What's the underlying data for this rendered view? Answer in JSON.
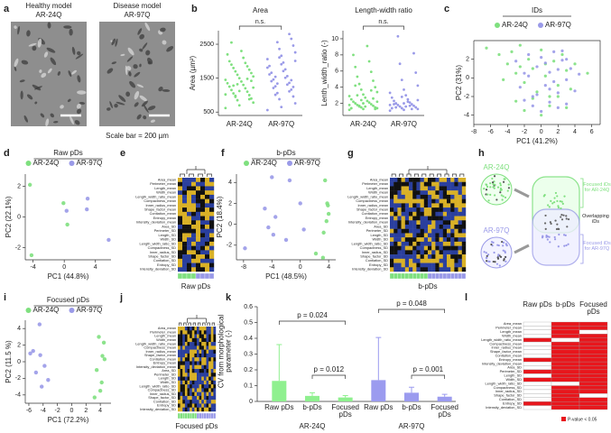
{
  "panel_labels": [
    "a",
    "b",
    "c",
    "d",
    "e",
    "f",
    "g",
    "h",
    "i",
    "j",
    "k",
    "l"
  ],
  "panel_a": {
    "left": [
      "Healthy model",
      "AR-24Q"
    ],
    "right": [
      "Disease model",
      "AR-97Q"
    ],
    "scale_note": "Scale bar = 200 µm"
  },
  "chart_data": [
    {
      "type": "swarm",
      "title": "Area",
      "ylabel": "Area (µm²)",
      "annotation": "n.s.",
      "categories": [
        "AR-24Q",
        "AR-97Q"
      ],
      "colors": [
        "#7fe07f",
        "#9a9ae8"
      ],
      "values": [
        [
          620,
          700,
          780,
          850,
          900,
          950,
          1000,
          1050,
          1100,
          1150,
          1200,
          1250,
          1300,
          1350,
          1400,
          1450,
          1500,
          1550,
          1600,
          1650,
          1700,
          1750,
          1800,
          1850,
          1900,
          1950,
          2000,
          2100,
          2200,
          2300,
          1020,
          1120,
          1220,
          1320,
          1420,
          980,
          880,
          1280,
          1480,
          2550
        ],
        [
          560,
          650,
          760,
          880,
          960,
          1060,
          1160,
          1260,
          1360,
          1460,
          1560,
          1660,
          1760,
          1860,
          1960,
          2060,
          2160,
          2260,
          2360,
          2460,
          2560,
          2660,
          1010,
          1110,
          1210,
          1310,
          1410,
          1510,
          1610,
          1710,
          1810,
          1910,
          2010,
          2110,
          1240,
          1340,
          1440,
          1540,
          2800
        ]
      ],
      "ylim": [
        400,
        2900
      ],
      "yticks": [
        500,
        1500,
        2500
      ]
    },
    {
      "type": "swarm",
      "title": "Length-width ratio",
      "ylabel": "Lenth_width_ratio (-)",
      "annotation": "n.s.",
      "categories": [
        "AR-24Q",
        "AR-97Q"
      ],
      "colors": [
        "#7fe07f",
        "#9a9ae8"
      ],
      "values": [
        [
          1.2,
          1.3,
          1.4,
          1.5,
          1.5,
          1.6,
          1.7,
          1.8,
          1.9,
          2.0,
          2.1,
          2.2,
          2.3,
          2.5,
          2.7,
          2.9,
          3.1,
          3.4,
          3.7,
          4.0,
          4.4,
          4.8,
          5.3,
          5.9,
          6.5,
          7.2,
          8.0,
          9.1,
          1.4,
          1.6,
          1.8,
          2.0,
          2.2,
          2.4,
          1.3,
          1.7,
          2.6,
          3.0,
          3.6,
          4.2
        ],
        [
          1.1,
          1.2,
          1.3,
          1.4,
          1.5,
          1.6,
          1.7,
          1.8,
          1.9,
          2.0,
          2.1,
          2.3,
          2.5,
          2.7,
          3.0,
          3.3,
          3.7,
          4.2,
          4.9,
          5.8,
          6.9,
          8.2,
          10.3,
          1.3,
          1.5,
          1.7,
          1.9,
          2.2,
          1.4,
          1.6,
          1.8,
          2.0,
          2.4,
          2.8
        ]
      ],
      "ylim": [
        0.5,
        11
      ],
      "yticks": [
        2,
        4,
        6,
        8,
        10
      ]
    },
    {
      "type": "scatter",
      "title": "IDs",
      "xlabel": "PC1 (41.2%)",
      "ylabel": "PC2 (31%)",
      "xlim": [
        -8,
        7
      ],
      "ylim": [
        -5,
        4
      ],
      "xticks": [
        -8,
        -6,
        -4,
        -2,
        0,
        2,
        4,
        6
      ],
      "yticks": [
        -4,
        -2,
        0,
        2
      ],
      "series": [
        {
          "name": "AR-24Q",
          "color": "#7fe07f",
          "x": [
            -6.5,
            -5,
            -4,
            -3.5,
            -3,
            -2.5,
            -2,
            -1.5,
            -1,
            -0.5,
            0,
            0.5,
            1,
            1.5,
            2,
            2.5,
            3,
            3.5,
            4,
            -3,
            -2,
            -1,
            0,
            1,
            2,
            -4.5,
            -2.5,
            0.5,
            3,
            5.5
          ],
          "y": [
            3.2,
            2.5,
            1.5,
            2.8,
            0.5,
            3.5,
            -0.5,
            2,
            1,
            -1.5,
            3,
            0.2,
            -2,
            1.8,
            -0.8,
            2.5,
            0.8,
            -1.2,
            1.5,
            -2.5,
            -3.5,
            -2.2,
            -4,
            -3,
            -2,
            -0.2,
            1.2,
            1.5,
            -3.2,
            0.5
          ]
        },
        {
          "name": "AR-97Q",
          "color": "#9a9ae8",
          "x": [
            -3,
            -2.5,
            -2,
            -1.5,
            -1,
            -0.5,
            0,
            0.5,
            1,
            1.5,
            2,
            2.5,
            3,
            3.5,
            4,
            4.5,
            -1,
            0,
            1,
            2,
            3,
            -2,
            -1.5,
            0.5,
            1.5,
            2.5,
            -0.5,
            1,
            2,
            3
          ],
          "y": [
            1.8,
            -1,
            0.5,
            2.5,
            -2,
            1.2,
            2.2,
            -0.8,
            0.6,
            2.8,
            -1.6,
            1.9,
            -0.2,
            1,
            -1.4,
            0.4,
            -3,
            -3.6,
            -2.6,
            -3.2,
            -2.8,
            -2.4,
            0.2,
            1.6,
            -0.4,
            2.9,
            -1.8,
            -1.2,
            0.9,
            2
          ]
        }
      ]
    },
    {
      "type": "scatter",
      "title": "Raw pDs",
      "xlabel": "PC1 (44.8%)",
      "ylabel": "PC2 (22.1%)",
      "xlim": [
        -5,
        6
      ],
      "ylim": [
        -2.8,
        2.8
      ],
      "xticks": [
        -4,
        0,
        4
      ],
      "yticks": [
        -2,
        0,
        2
      ],
      "series": [
        {
          "name": "AR-24Q",
          "color": "#7fe07f",
          "x": [
            -4.4,
            -0.1,
            0.4,
            -4.2
          ],
          "y": [
            2.1,
            0.9,
            -0.5,
            -2.5
          ]
        },
        {
          "name": "AR-97Q",
          "color": "#9a9ae8",
          "x": [
            3.0,
            2.9,
            0.3,
            5.7
          ],
          "y": [
            1.2,
            0.5,
            0.4,
            -1.5
          ]
        }
      ]
    },
    {
      "type": "scatter",
      "title": "b-pDs",
      "xlabel": "PC1 (48.5%)",
      "ylabel": "PC2 (18.4%)",
      "xlim": [
        -9,
        5
      ],
      "ylim": [
        -3.4,
        4.8
      ],
      "xticks": [
        -8,
        -4,
        0,
        4
      ],
      "yticks": [
        -2,
        0,
        2,
        4
      ],
      "series": [
        {
          "name": "AR-24Q",
          "color": "#7fe07f",
          "x": [
            3.5,
            3.8,
            3.9,
            4.0,
            3.7,
            3.3,
            2.2,
            3.2
          ],
          "y": [
            4.2,
            2.0,
            1.8,
            1.0,
            0.3,
            -0.8,
            -2.8,
            -3.2
          ]
        },
        {
          "name": "AR-97Q",
          "color": "#9a9ae8",
          "x": [
            -4,
            -1.5,
            -5,
            -3.5,
            -4.5,
            -3.8,
            -7.8,
            0.5,
            -2,
            0
          ],
          "y": [
            4.5,
            4.2,
            1.5,
            0.7,
            -0.3,
            -1,
            -2.3,
            -0.5,
            -1.5,
            2
          ]
        }
      ]
    },
    {
      "type": "scatter",
      "title": "Focused pDs",
      "xlabel": "PC1 (72.2%)",
      "ylabel": "PC2 (11.5 %)",
      "xlim": [
        -6.5,
        5.5
      ],
      "ylim": [
        -5,
        5
      ],
      "xticks": [
        -6,
        -4,
        -2,
        0,
        2,
        4
      ],
      "yticks": [
        -4,
        -2,
        0,
        2,
        4
      ],
      "series": [
        {
          "name": "AR-24Q",
          "color": "#7fe07f",
          "x": [
            3.8,
            4.5,
            4.3,
            4.6,
            3.5,
            4.2,
            4.0,
            3.2
          ],
          "y": [
            3,
            2.3,
            0.7,
            0.3,
            -1,
            -2.5,
            -3.5,
            -4.3
          ]
        },
        {
          "name": "AR-97Q",
          "color": "#9a9ae8",
          "x": [
            -4.5,
            -5.8,
            -5.4,
            -4.4,
            -3.8,
            -5,
            -3.3,
            -4.2
          ],
          "y": [
            4.5,
            1,
            1.3,
            0.8,
            -0.5,
            -1.3,
            -2.2,
            -3
          ]
        }
      ]
    },
    {
      "type": "bar",
      "ylabel": "CV from morphological parameter (-)",
      "categories": [
        "Raw pDs",
        "b-pDs",
        "Focused pDs"
      ],
      "ylim": [
        0,
        0.6
      ],
      "yticks": [
        0,
        0.1,
        0.2,
        0.3,
        0.4,
        0.5,
        0.6
      ],
      "series": [
        {
          "name": "AR-24Q",
          "color": "#8ff08f",
          "values": [
            0.13,
            0.035,
            0.025
          ],
          "errors": [
            0.23,
            0.02,
            0.012
          ]
        },
        {
          "name": "AR-97Q",
          "color": "#9b9bef",
          "values": [
            0.135,
            0.055,
            0.03
          ],
          "errors": [
            0.27,
            0.035,
            0.015
          ]
        }
      ],
      "annotations": [
        "p = 0.024",
        "p = 0.012",
        "p = 0.048",
        "p = 0.001"
      ]
    }
  ],
  "features": [
    "Area_mean",
    "Perimeter_mean",
    "Length_mean",
    "Width_mean",
    "Length_width_ratio_mean",
    "Compactness_mean",
    "Inner_radius_mean",
    "Shape_factor_mean",
    "Contiation_mean",
    "Entropy_mean",
    "Intensity_deviation_mean",
    "Area_SD",
    "Perimeter_SD",
    "Length_SD",
    "Width_SD",
    "Length_width_ratio_SD",
    "Compactness_SD",
    "Inner_radius_SD",
    "Shape_factor_SD",
    "Contiation_SD",
    "Entropy_SD",
    "Intensity_deviation_SD"
  ],
  "heatmaps": [
    {
      "label": "Raw pDs"
    },
    {
      "label": "b-pDs"
    },
    {
      "label": "Focused pDs"
    }
  ],
  "panel_h": {
    "groups": [
      "AR-24Q",
      "AR-97Q"
    ],
    "labels": [
      "Focused iDs for AR-24Q",
      "Overlapping iDs",
      "Focused iDs for AR-97Q"
    ]
  },
  "panel_l": {
    "columns": [
      "Raw pDs",
      "b-pDs",
      "Focused pDs"
    ],
    "color": "#e8161c",
    "legend": "P-value < 0.05",
    "significant": [
      [
        0,
        0,
        0,
        0,
        1,
        0,
        0,
        0,
        0,
        1,
        0,
        0,
        1,
        0,
        1,
        0,
        0,
        0,
        0,
        0,
        1,
        0
      ],
      [
        1,
        1,
        1,
        1,
        0,
        1,
        1,
        1,
        1,
        1,
        1,
        1,
        1,
        1,
        1,
        0,
        1,
        1,
        1,
        1,
        1,
        1
      ],
      [
        1,
        1,
        0,
        1,
        1,
        1,
        1,
        1,
        1,
        1,
        1,
        1,
        1,
        1,
        1,
        1,
        1,
        1,
        0,
        1,
        1,
        1
      ]
    ]
  }
}
